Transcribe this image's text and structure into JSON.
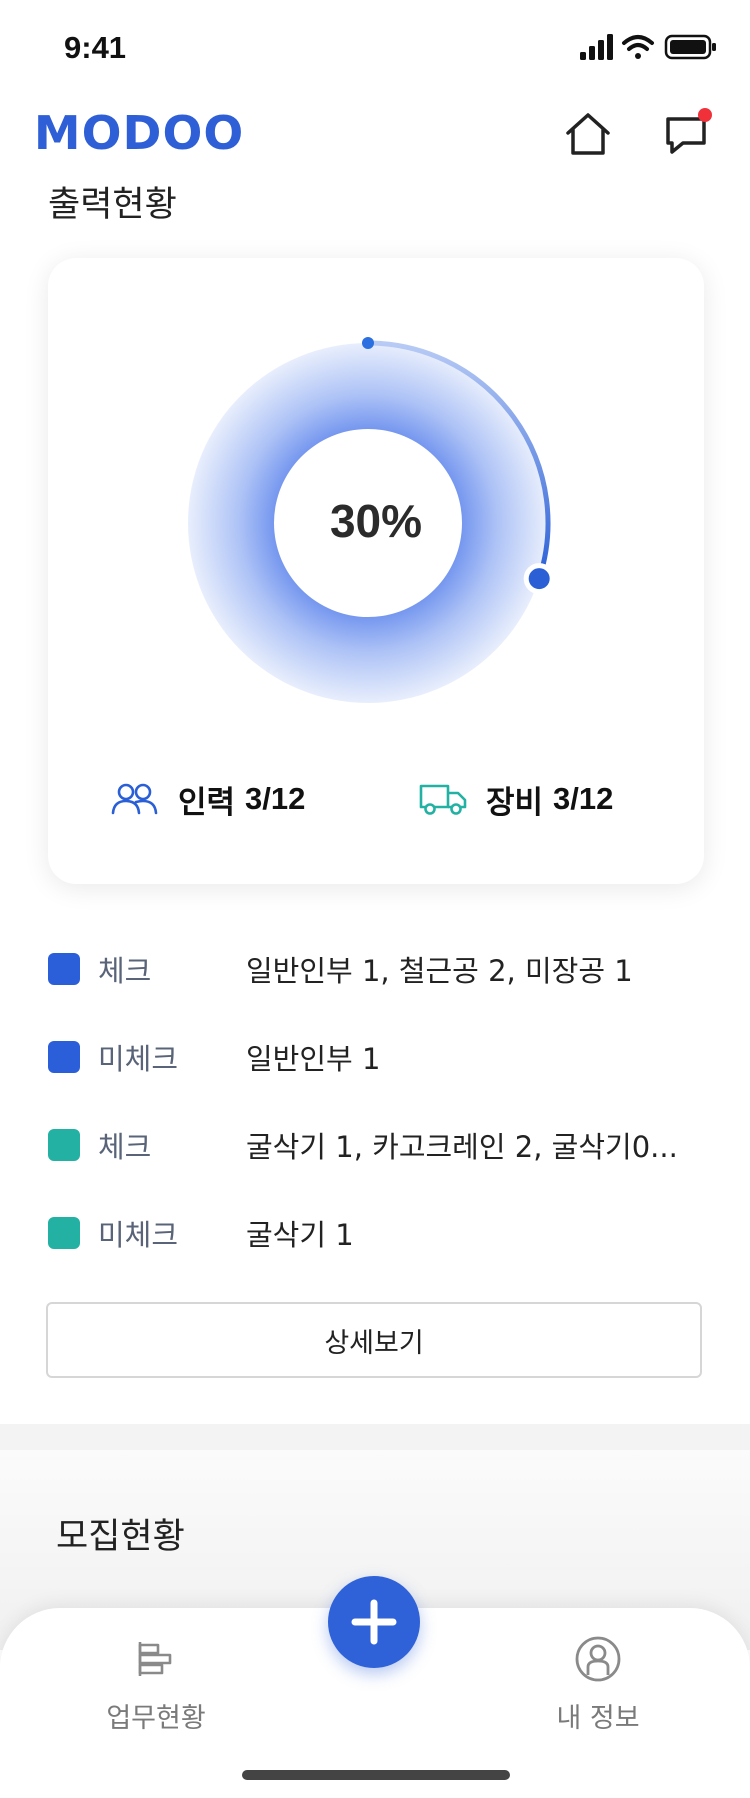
{
  "status_bar": {
    "time": "9:41"
  },
  "header": {
    "logo": "MODOO"
  },
  "output_section": {
    "title": "출력현황",
    "percent_label": "30%",
    "progress_fraction": 0.3,
    "person": {
      "label": "인력",
      "value": "3/12"
    },
    "equipment": {
      "label": "장비",
      "value": "3/12"
    }
  },
  "legend": [
    {
      "status": "체크",
      "detail": "일반인부 1, 철근공 2, 미장공 1",
      "color": "#2b5fd9"
    },
    {
      "status": "미체크",
      "detail": "일반인부 1",
      "color": "#2b5fd9"
    },
    {
      "status": "체크",
      "detail": "굴삭기 1, 카고크레인 2, 굴삭기0...",
      "color": "#23b1a4"
    },
    {
      "status": "미체크",
      "detail": "굴삭기 1",
      "color": "#23b1a4"
    }
  ],
  "detail_button": {
    "label": "상세보기"
  },
  "recruit_section": {
    "title": "모집현황"
  },
  "bottom_nav": {
    "work_label": "업무현황",
    "my_label": "내 정보"
  },
  "colors": {
    "brand": "#2f5fd6",
    "equipment": "#23b1a4",
    "notification": "#f0313a"
  }
}
